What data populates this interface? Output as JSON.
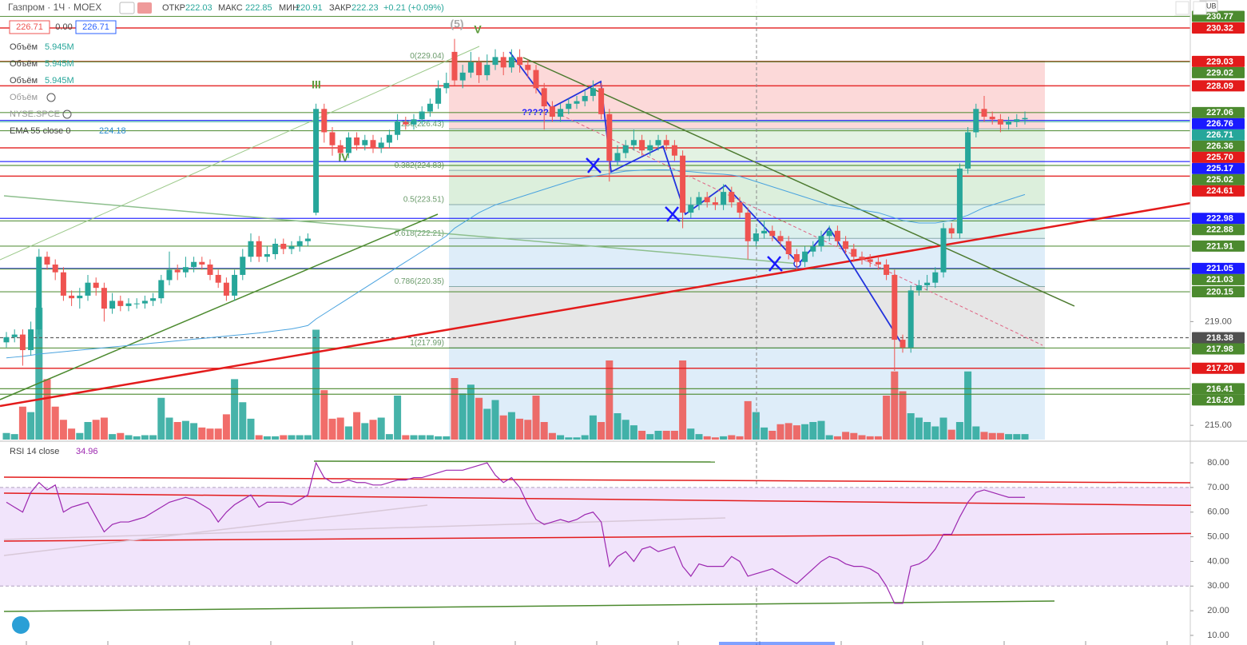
{
  "chart_data": {
    "type": "candlestick",
    "symbol": "Газпром · 1Ч · MOEX",
    "quote": {
      "labels": [
        "ОТКР",
        "МАКС",
        "МИН",
        "ЗАКР"
      ],
      "values": [
        222.03,
        222.85,
        220.91,
        222.23
      ],
      "change": "+0.21 (+0.09%)"
    },
    "quote_boxes": [
      "226.71",
      "0.00",
      "226.71"
    ],
    "indicators": [
      {
        "name": "Объём",
        "value": "5.945M"
      },
      {
        "name": "Объём",
        "value": "5.945M"
      },
      {
        "name": "Объём",
        "value": "5.945M"
      },
      {
        "name": "Объём"
      },
      {
        "name": "NYSE:SPCE"
      },
      {
        "name": "EMA 55 close 0",
        "value": "224.18"
      }
    ],
    "currency": "RUB",
    "up_color": "#26a69a",
    "down_color": "#ef5350",
    "ylim": [
      214.45,
      231.4
    ],
    "yticks": [
      {
        "value": 219,
        "label": "219.00"
      },
      {
        "value": 215,
        "label": "215.00"
      }
    ],
    "grid": false,
    "open": [
      218.2,
      218.4,
      218.5,
      217.9,
      218.7,
      221.5,
      221.2,
      220.9,
      220.0,
      219.9,
      220.0,
      220.5,
      220.3,
      219.5,
      219.8,
      219.6,
      219.7,
      219.7,
      219.8,
      219.9,
      220.6,
      221.0,
      220.9,
      221.1,
      221.3,
      221.2,
      220.8,
      220.5,
      220.0,
      220.8,
      221.5,
      222.1,
      221.5,
      221.6,
      222.0,
      221.8,
      221.9,
      222.1,
      223.2,
      227.2,
      226.3,
      225.8,
      225.5,
      226.1,
      225.8,
      226.0,
      225.7,
      225.9,
      226.2,
      226.7,
      226.6,
      226.8,
      227.1,
      227.4,
      228.0,
      229.4,
      228.3,
      228.6,
      229.0,
      228.5,
      228.9,
      229.2,
      228.8,
      229.2,
      228.9,
      228.7,
      228.0,
      227.3,
      226.9,
      227.2,
      227.4,
      227.5,
      227.7,
      228.0,
      227.0,
      225.2,
      225.5,
      225.8,
      226.0,
      225.6,
      225.8,
      226.0,
      225.8,
      225.4,
      223.2,
      223.5,
      223.8,
      223.6,
      223.5,
      224.0,
      223.6,
      223.2,
      222.1,
      222.4,
      222.5,
      222.3,
      222.1,
      221.6,
      221.3,
      221.7,
      221.9,
      222.3,
      222.5,
      222.1,
      221.8,
      221.5,
      221.4,
      221.3,
      221.2,
      220.8,
      218.3,
      218.0,
      220.2,
      220.4,
      220.5,
      220.9,
      222.6,
      222.4,
      224.9,
      226.3,
      227.2,
      226.9,
      226.8,
      226.6,
      226.7,
      226.8
    ],
    "high": [
      218.6,
      218.7,
      218.7,
      219.0,
      221.8,
      221.7,
      221.4,
      221.1,
      220.2,
      220.3,
      220.8,
      220.7,
      220.5,
      220.1,
      220.0,
      219.9,
      219.9,
      220.0,
      220.1,
      220.8,
      221.7,
      221.2,
      221.5,
      221.5,
      221.5,
      221.4,
      221.0,
      220.7,
      221.0,
      221.8,
      222.4,
      222.3,
      221.9,
      222.2,
      222.2,
      222.1,
      222.3,
      222.4,
      227.4,
      227.4,
      226.5,
      226.0,
      226.3,
      226.3,
      226.2,
      226.2,
      226.1,
      226.4,
      227.0,
      226.9,
      227.0,
      227.3,
      227.6,
      228.3,
      228.6,
      229.9,
      228.9,
      229.4,
      229.2,
      229.3,
      229.5,
      229.4,
      229.5,
      229.5,
      229.1,
      228.9,
      228.2,
      227.5,
      227.4,
      227.6,
      227.7,
      227.9,
      228.3,
      228.2,
      227.2,
      225.8,
      226.0,
      226.4,
      226.2,
      226.0,
      226.2,
      226.2,
      226.0,
      225.6,
      223.8,
      224.0,
      224.0,
      223.8,
      224.3,
      224.2,
      223.8,
      223.4,
      222.6,
      222.9,
      222.7,
      222.5,
      222.3,
      221.8,
      221.9,
      222.1,
      222.5,
      222.7,
      222.7,
      222.3,
      222.0,
      221.7,
      221.6,
      221.5,
      221.4,
      221.0,
      218.5,
      220.4,
      220.6,
      220.8,
      221.1,
      222.8,
      222.8,
      225.1,
      226.5,
      227.4,
      227.7,
      227.1,
      227.0,
      226.9,
      227.0,
      227.1
    ],
    "low": [
      218.0,
      218.2,
      217.3,
      217.7,
      218.5,
      221.0,
      220.6,
      219.8,
      219.6,
      219.5,
      219.8,
      220.0,
      219.0,
      219.3,
      219.4,
      219.4,
      219.5,
      219.5,
      219.6,
      219.7,
      220.4,
      220.6,
      220.7,
      220.9,
      221.0,
      220.6,
      220.3,
      219.8,
      219.8,
      220.6,
      221.3,
      221.3,
      221.3,
      221.4,
      221.6,
      221.6,
      221.7,
      221.9,
      223.1,
      225.9,
      225.4,
      225.3,
      225.3,
      225.6,
      225.6,
      225.5,
      225.5,
      225.7,
      226.0,
      226.4,
      226.4,
      226.6,
      226.9,
      227.2,
      227.8,
      228.1,
      228.0,
      228.4,
      228.2,
      228.3,
      228.7,
      228.5,
      228.6,
      228.6,
      228.4,
      227.8,
      226.4,
      226.7,
      226.7,
      227.0,
      227.2,
      227.3,
      227.5,
      226.8,
      224.4,
      225.0,
      225.3,
      225.6,
      225.4,
      225.4,
      225.6,
      225.6,
      225.2,
      222.6,
      223.0,
      223.3,
      223.4,
      223.3,
      223.3,
      223.4,
      223.0,
      221.4,
      221.9,
      222.2,
      222.1,
      221.9,
      221.4,
      221.0,
      221.1,
      221.5,
      221.7,
      222.1,
      221.9,
      221.6,
      221.3,
      221.2,
      221.1,
      221.0,
      220.6,
      217.1,
      217.8,
      217.8,
      220.0,
      220.2,
      220.3,
      220.7,
      222.2,
      222.2,
      224.7,
      226.1,
      226.7,
      226.6,
      226.3,
      226.4,
      226.5,
      226.6
    ],
    "close": [
      218.4,
      218.5,
      217.9,
      218.7,
      221.5,
      221.2,
      220.9,
      220.0,
      219.9,
      220.0,
      220.5,
      220.3,
      219.5,
      219.8,
      219.6,
      219.7,
      219.7,
      219.8,
      219.9,
      220.6,
      221.0,
      220.9,
      221.1,
      221.3,
      221.2,
      220.8,
      220.5,
      220.0,
      220.8,
      221.5,
      222.1,
      221.5,
      221.6,
      222.0,
      221.8,
      221.9,
      222.1,
      222.2,
      227.2,
      226.3,
      225.8,
      225.5,
      226.1,
      225.8,
      226.0,
      225.7,
      225.9,
      226.2,
      226.7,
      226.6,
      226.8,
      227.1,
      227.4,
      228.0,
      228.2,
      228.3,
      228.6,
      229.0,
      228.5,
      228.9,
      229.2,
      228.8,
      229.2,
      228.9,
      228.7,
      228.0,
      227.3,
      226.9,
      227.2,
      227.4,
      227.5,
      227.7,
      228.0,
      227.0,
      225.2,
      225.5,
      225.8,
      226.0,
      225.6,
      225.8,
      226.0,
      225.8,
      225.4,
      223.2,
      223.5,
      223.8,
      223.6,
      223.5,
      224.0,
      223.6,
      223.2,
      222.1,
      222.4,
      222.5,
      222.3,
      222.1,
      221.6,
      221.3,
      221.7,
      221.9,
      222.3,
      222.5,
      222.1,
      221.8,
      221.5,
      221.4,
      221.3,
      221.2,
      220.8,
      218.3,
      218.0,
      220.2,
      220.4,
      220.5,
      220.9,
      222.6,
      222.4,
      224.9,
      226.3,
      227.2,
      226.9,
      226.8,
      226.6,
      226.7,
      226.8,
      226.85
    ],
    "volume": {
      "vlim": [
        0,
        40
      ],
      "values": [
        0.6,
        0.5,
        3.0,
        2.5,
        12.0,
        5.5,
        3.0,
        1.8,
        1.0,
        0.6,
        1.6,
        1.8,
        2.0,
        0.5,
        0.6,
        0.4,
        0.3,
        0.4,
        0.4,
        3.8,
        2.0,
        1.6,
        1.7,
        1.5,
        1.1,
        1.0,
        1.0,
        2.3,
        5.5,
        3.4,
        1.9,
        0.4,
        0.3,
        0.3,
        0.4,
        0.4,
        0.4,
        0.4,
        10.0,
        4.5,
        1.9,
        2.0,
        1.2,
        2.5,
        1.5,
        1.8,
        2.0,
        0.5,
        4.0,
        0.4,
        0.4,
        0.4,
        0.4,
        0.3,
        0.3,
        5.6,
        4.2,
        5.0,
        3.8,
        2.8,
        3.6,
        2.2,
        2.5,
        1.9,
        1.8,
        4.0,
        1.6,
        0.6,
        0.4,
        0.2,
        0.2,
        0.4,
        2.2,
        1.6,
        7.2,
        2.4,
        1.8,
        1.3,
        0.8,
        0.5,
        0.8,
        0.8,
        0.8,
        7.2,
        1.0,
        0.5,
        0.3,
        0.2,
        0.3,
        0.4,
        0.3,
        3.5,
        2.5,
        1.1,
        0.8,
        1.4,
        1.5,
        1.3,
        1.4,
        1.6,
        1.7,
        0.4,
        0.3,
        0.7,
        0.6,
        0.4,
        0.3,
        0.3,
        4.0,
        6.2,
        4.4,
        2.4,
        2.0,
        1.6,
        1.2,
        2.0,
        0.9,
        1.6,
        6.2,
        1.2,
        0.7,
        0.6,
        0.6,
        0.5,
        0.5,
        0.5
      ]
    },
    "ema": {
      "color": "#4aa3df",
      "values": [
        217.6,
        217.63,
        217.66,
        217.7,
        217.75,
        217.78,
        217.81,
        217.84,
        217.87,
        217.9,
        217.93,
        217.96,
        217.99,
        218.02,
        218.05,
        218.08,
        218.11,
        218.14,
        218.17,
        218.2,
        218.23,
        218.26,
        218.29,
        218.32,
        218.35,
        218.38,
        218.41,
        218.44,
        218.47,
        218.5,
        218.53,
        218.56,
        218.6,
        218.64,
        218.68,
        218.72,
        218.78,
        218.85,
        219.1,
        219.3,
        219.5,
        219.7,
        219.9,
        220.1,
        220.3,
        220.5,
        220.7,
        220.9,
        221.1,
        221.3,
        221.5,
        221.7,
        221.9,
        222.1,
        222.3,
        222.6,
        222.8,
        223.0,
        223.2,
        223.35,
        223.5,
        223.6,
        223.7,
        223.8,
        223.9,
        224.0,
        224.1,
        224.2,
        224.3,
        224.4,
        224.5,
        224.55,
        224.6,
        224.65,
        224.7,
        224.75,
        224.8,
        224.82,
        224.84,
        224.85,
        224.85,
        224.85,
        224.84,
        224.8,
        224.78,
        224.75,
        224.72,
        224.7,
        224.68,
        224.65,
        224.6,
        224.5,
        224.4,
        224.3,
        224.2,
        224.1,
        224.0,
        223.9,
        223.8,
        223.7,
        223.6,
        223.5,
        223.45,
        223.4,
        223.35,
        223.3,
        223.25,
        223.2,
        223.1,
        223.0,
        222.9,
        222.85,
        222.8,
        222.8,
        222.8,
        222.85,
        222.9,
        223.0,
        223.1,
        223.25,
        223.4,
        223.5,
        223.6,
        223.7,
        223.8,
        223.9
      ]
    },
    "levels": [
      {
        "value": 230.77,
        "color": "#4c8a2f"
      },
      {
        "value": 230.32,
        "color": "#e31b1b"
      },
      {
        "value": 229.03,
        "color": "#e31b1b"
      },
      {
        "value": 229.02,
        "color": "#4c8a2f"
      },
      {
        "value": 228.09,
        "color": "#e31b1b"
      },
      {
        "value": 227.06,
        "color": "#4c8a2f"
      },
      {
        "value": 226.76,
        "color": "#1a1aff"
      },
      {
        "value": 226.71,
        "color": "#26a69a"
      },
      {
        "value": 226.36,
        "color": "#4c8a2f"
      },
      {
        "value": 225.7,
        "label": "225.70",
        "color": "#e31b1b"
      },
      {
        "value": 225.17,
        "color": "#1a1aff"
      },
      {
        "value": 225.02,
        "color": "#4c8a2f"
      },
      {
        "value": 224.61,
        "color": "#e31b1b"
      },
      {
        "value": 222.98,
        "color": "#1a1aff"
      },
      {
        "value": 222.88,
        "color": "#4c8a2f"
      },
      {
        "value": 221.91,
        "color": "#4c8a2f"
      },
      {
        "value": 221.05,
        "color": "#1a1aff"
      },
      {
        "value": 221.03,
        "color": "#4c8a2f"
      },
      {
        "value": 220.15,
        "color": "#4c8a2f"
      },
      {
        "value": 218.38,
        "color": "#505050"
      },
      {
        "value": 217.98,
        "color": "#4c8a2f"
      },
      {
        "value": 217.2,
        "label": "217.20",
        "color": "#e31b1b"
      },
      {
        "value": 216.41,
        "color": "#4c8a2f"
      },
      {
        "value": 216.2,
        "label": "216.20",
        "color": "#4c8a2f"
      }
    ],
    "fib": [
      {
        "value": 229.04,
        "label": "0(229.04)"
      },
      {
        "value": 226.43,
        "label": "0.236(226.43)"
      },
      {
        "value": 224.83,
        "label": "0.382(224.83)"
      },
      {
        "value": 223.51,
        "label": "0.5(223.51)"
      },
      {
        "value": 222.21,
        "label": "0.618(222.21)"
      },
      {
        "value": 220.35,
        "label": "0.786(220.35)"
      },
      {
        "value": 217.99,
        "label": "1(217.99)"
      }
    ],
    "annotations": [
      "?????",
      "III",
      "IV",
      "V",
      "(5)"
    ],
    "rsi": {
      "title": "RSI 14 close",
      "value": "34.96",
      "color": "#9c27b0",
      "ylim": [
        6.1,
        87.8
      ],
      "yticks": [
        {
          "value": 80,
          "label": "80.00"
        },
        {
          "value": 70,
          "label": "70.00"
        },
        {
          "value": 60,
          "label": "60.00"
        },
        {
          "value": 50,
          "label": "50.00"
        },
        {
          "value": 40,
          "label": "40.00"
        },
        {
          "value": 30,
          "label": "30.00"
        },
        {
          "value": 20,
          "label": "20.00"
        },
        {
          "value": 10,
          "label": "10.00"
        }
      ],
      "band": [
        30,
        70
      ],
      "values": [
        64,
        62,
        60,
        68,
        72,
        69,
        71,
        60,
        62,
        63,
        64,
        58,
        52,
        55,
        56,
        56,
        57,
        58,
        60,
        62,
        64,
        65,
        66,
        65,
        63,
        61,
        56,
        60,
        63,
        65,
        67,
        62,
        64,
        64,
        64,
        63,
        65,
        67,
        80,
        74,
        72,
        72,
        73,
        72,
        72,
        71,
        71,
        72,
        73,
        73,
        74,
        74,
        75,
        76,
        77,
        77,
        77,
        78,
        79,
        80,
        75,
        72,
        74,
        70,
        63,
        57,
        55,
        56,
        57,
        56,
        57,
        59,
        60,
        56,
        38,
        42,
        44,
        40,
        45,
        46,
        44,
        45,
        46,
        38,
        34,
        39,
        38,
        38,
        38,
        42,
        40,
        34,
        35,
        36,
        37,
        35,
        33,
        31,
        34,
        37,
        40,
        42,
        41,
        39,
        38,
        38,
        37,
        35,
        30,
        23,
        23,
        38,
        39,
        41,
        45,
        51,
        51,
        58,
        64,
        68,
        69,
        68,
        67,
        66,
        66,
        66
      ]
    }
  }
}
